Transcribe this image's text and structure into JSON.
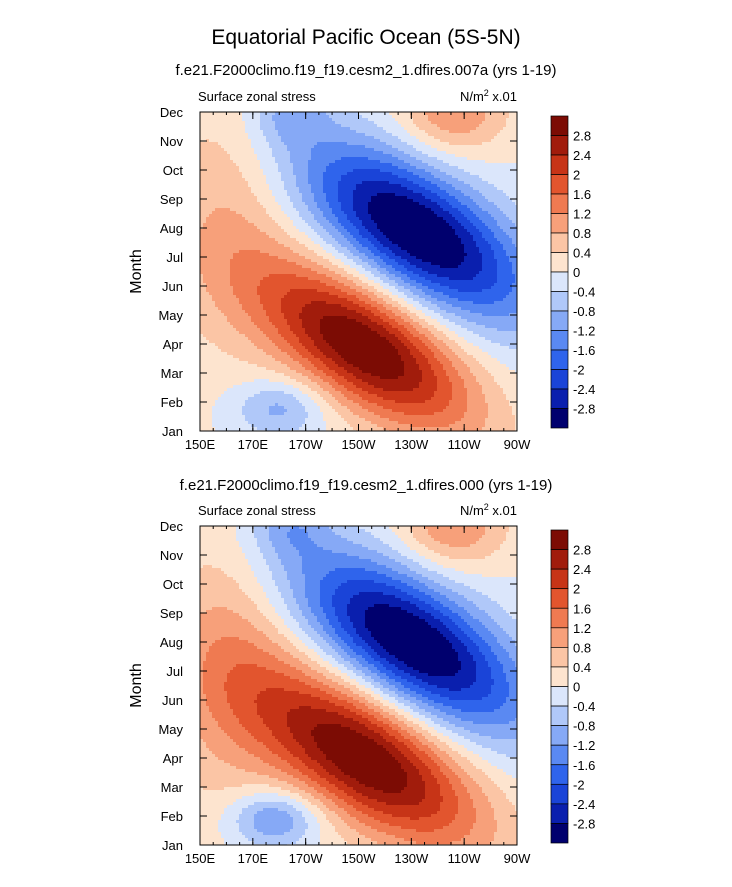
{
  "figure_title": "Equatorial Pacific Ocean (5S-5N)",
  "chart_data": [
    {
      "type": "heatmap",
      "title": "f.e21.F2000climo.f19_f19.cesm2_1.dfires.007a (yrs 1-19)",
      "left_label": "Surface zonal stress",
      "right_label": "N/m",
      "units_exponent": "2",
      "units_suffix": " x.01",
      "ylabel": "Month",
      "xlabel": "",
      "x_tick_labels": [
        "150E",
        "170E",
        "170W",
        "150W",
        "130W",
        "110W",
        "90W"
      ],
      "x_tick_lon": [
        150,
        170,
        190,
        210,
        230,
        250,
        270
      ],
      "xlim": [
        150,
        270
      ],
      "y_tick_labels": [
        "Jan",
        "Feb",
        "Mar",
        "Apr",
        "May",
        "Jun",
        "Jul",
        "Aug",
        "Sep",
        "Oct",
        "Nov",
        "Dec"
      ],
      "ylim": [
        1,
        12
      ],
      "levels": [
        -2.8,
        -2.4,
        -2,
        -1.6,
        -1.2,
        -0.8,
        -0.4,
        0,
        0.4,
        0.8,
        1.2,
        1.6,
        2,
        2.4,
        2.8
      ],
      "colorbar_labels": [
        "2.8",
        "2.4",
        "2",
        "1.6",
        "1.2",
        "0.8",
        "0.4",
        "0",
        "-0.4",
        "-0.8",
        "-1.2",
        "-1.6",
        "-2",
        "-2.4",
        "-2.8"
      ],
      "features": [
        {
          "name": "positive-core",
          "lon": 212,
          "month": 3.9,
          "amplitude": 3.3,
          "lon_width": 28,
          "month_width": 1.5,
          "tilt": -0.045
        },
        {
          "name": "negative-core",
          "lon": 232,
          "month": 7.9,
          "amplitude": -3.4,
          "lon_width": 30,
          "month_width": 1.6,
          "tilt": -0.045
        },
        {
          "name": "western-positive",
          "lon": 160,
          "month": 8.5,
          "amplitude": 0.7,
          "lon_width": 18,
          "month_width": 3.5,
          "tilt": 0
        },
        {
          "name": "feb-negative",
          "lon": 180,
          "month": 1.8,
          "amplitude": -1.0,
          "lon_width": 12,
          "month_width": 0.7,
          "tilt": 0
        },
        {
          "name": "dec-positive-east",
          "lon": 246,
          "month": 12,
          "amplitude": 1.2,
          "lon_width": 14,
          "month_width": 1.0,
          "tilt": 0
        },
        {
          "name": "dec-negative-west",
          "lon": 184,
          "month": 12,
          "amplitude": -0.8,
          "lon_width": 10,
          "month_width": 0.8,
          "tilt": 0
        }
      ]
    },
    {
      "type": "heatmap",
      "title": "f.e21.F2000climo.f19_f19.cesm2_1.dfires.000 (yrs 1-19)",
      "left_label": "Surface zonal stress",
      "right_label": "N/m",
      "units_exponent": "2",
      "units_suffix": " x.01",
      "ylabel": "Month",
      "xlabel": "",
      "x_tick_labels": [
        "150E",
        "170E",
        "170W",
        "150W",
        "130W",
        "110W",
        "90W"
      ],
      "x_tick_lon": [
        150,
        170,
        190,
        210,
        230,
        250,
        270
      ],
      "xlim": [
        150,
        270
      ],
      "y_tick_labels": [
        "Jan",
        "Feb",
        "Mar",
        "Apr",
        "May",
        "Jun",
        "Jul",
        "Aug",
        "Sep",
        "Oct",
        "Nov",
        "Dec"
      ],
      "ylim": [
        1,
        12
      ],
      "levels": [
        -2.8,
        -2.4,
        -2,
        -1.6,
        -1.2,
        -0.8,
        -0.4,
        0,
        0.4,
        0.8,
        1.2,
        1.6,
        2,
        2.4,
        2.8
      ],
      "colorbar_labels": [
        "2.8",
        "2.4",
        "2",
        "1.6",
        "1.2",
        "0.8",
        "0.4",
        "0",
        "-0.4",
        "-0.8",
        "-1.2",
        "-1.6",
        "-2",
        "-2.4",
        "-2.8"
      ],
      "features": [
        {
          "name": "positive-core",
          "lon": 212,
          "month": 4.0,
          "amplitude": 3.3,
          "lon_width": 30,
          "month_width": 1.6,
          "tilt": -0.045
        },
        {
          "name": "negative-core",
          "lon": 230,
          "month": 8.0,
          "amplitude": -3.4,
          "lon_width": 30,
          "month_width": 1.6,
          "tilt": -0.045
        },
        {
          "name": "western-positive",
          "lon": 160,
          "month": 7.0,
          "amplitude": 0.9,
          "lon_width": 18,
          "month_width": 3.5,
          "tilt": 0
        },
        {
          "name": "feb-negative",
          "lon": 178,
          "month": 1.9,
          "amplitude": -1.4,
          "lon_width": 12,
          "month_width": 0.7,
          "tilt": 0
        },
        {
          "name": "dec-positive-east",
          "lon": 246,
          "month": 12,
          "amplitude": 1.2,
          "lon_width": 14,
          "month_width": 1.0,
          "tilt": 0
        },
        {
          "name": "dec-negative-west",
          "lon": 184,
          "month": 12,
          "amplitude": -0.8,
          "lon_width": 10,
          "month_width": 0.8,
          "tilt": 0
        }
      ]
    }
  ],
  "colors": {
    "palette": [
      "#00006e",
      "#0a1fae",
      "#1a44d8",
      "#2f64ec",
      "#5a89f2",
      "#86a9f6",
      "#b0c8f9",
      "#dbe6fb",
      "#fde4cf",
      "#fbc5a5",
      "#f7a07a",
      "#ef7a51",
      "#e2552e",
      "#c73417",
      "#a11c0c",
      "#7c0c04"
    ]
  }
}
